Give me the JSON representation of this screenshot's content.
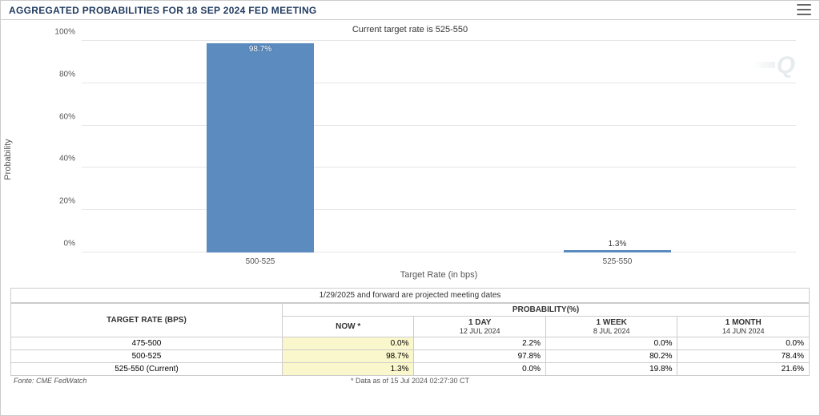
{
  "header": {
    "title": "AGGREGATED PROBABILITIES FOR 18 SEP 2024 FED MEETING",
    "subtitle": "Current target rate is 525-550"
  },
  "watermark": "Q",
  "chart": {
    "type": "bar",
    "y_label": "Probability",
    "x_label": "Target Rate (in bps)",
    "ylim": [
      0,
      100
    ],
    "ytick_step": 20,
    "y_ticks": [
      "0%",
      "20%",
      "40%",
      "60%",
      "80%",
      "100%"
    ],
    "categories": [
      "500-525",
      "525-550"
    ],
    "values": [
      98.7,
      1.3
    ],
    "value_labels": [
      "98.7%",
      "1.3%"
    ],
    "bar_color": "#5b8bbf",
    "grid_color": "#e6e6e6",
    "background_color": "#ffffff",
    "bar_rel_width": 0.3,
    "title_fontsize": 12,
    "axis_fontsize": 11,
    "tick_fontsize": 10
  },
  "note": "1/29/2025 and forward are projected meeting dates",
  "table": {
    "row_header_title": "TARGET RATE (BPS)",
    "prob_header": "PROBABILITY(%)",
    "columns": [
      {
        "label": "NOW *",
        "sub": ""
      },
      {
        "label": "1 DAY",
        "sub": "12 JUL 2024"
      },
      {
        "label": "1 WEEK",
        "sub": "8 JUL 2024"
      },
      {
        "label": "1 MONTH",
        "sub": "14 JUN 2024"
      }
    ],
    "rows": [
      {
        "rate": "475-500",
        "vals": [
          "0.0%",
          "2.2%",
          "0.0%",
          "0.0%"
        ]
      },
      {
        "rate": "500-525",
        "vals": [
          "98.7%",
          "97.8%",
          "80.2%",
          "78.4%"
        ]
      },
      {
        "rate": "525-550 (Current)",
        "vals": [
          "1.3%",
          "0.0%",
          "19.8%",
          "21.6%"
        ]
      }
    ],
    "now_col_bg": "#fbf7cc",
    "border_color": "#cccccc",
    "header_fontsize": 10
  },
  "footer": {
    "source": "Fonte: CME FedWatch",
    "asof": "* Data as of 15 Jul 2024 02:27:30 CT"
  }
}
